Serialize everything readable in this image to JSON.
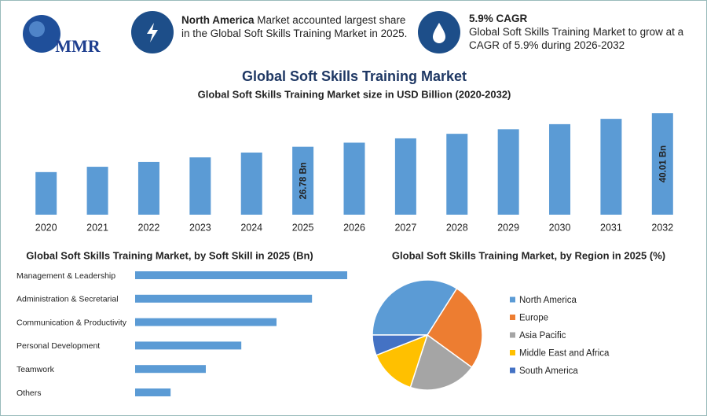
{
  "header": {
    "logo": "MMR",
    "stat1": {
      "bold": "North America",
      "text": "Market accounted largest share in the Global Soft Skills Training Market in 2025."
    },
    "stat2": {
      "bold": "5.9% CAGR",
      "text": "Global Soft Skills Training Market to grow at a CAGR of 5.9% during 2026-2032"
    }
  },
  "title": "Global Soft Skills Training Market",
  "chart_data": [
    {
      "type": "bar",
      "title": "Global Soft Skills Training Market size in USD Billion (2020-2032)",
      "categories": [
        "2020",
        "2021",
        "2022",
        "2023",
        "2024",
        "2025",
        "2026",
        "2027",
        "2028",
        "2029",
        "2030",
        "2031",
        "2032"
      ],
      "values": [
        16.8,
        18.9,
        20.8,
        22.6,
        24.5,
        26.78,
        28.4,
        30.1,
        31.9,
        33.7,
        35.7,
        37.8,
        40.01
      ],
      "value_labels": [
        null,
        null,
        null,
        null,
        null,
        "26.78 Bn",
        null,
        null,
        null,
        null,
        null,
        null,
        "40.01 Bn"
      ],
      "color": "#5b9bd5"
    },
    {
      "type": "bar",
      "horizontal": true,
      "title": "Global Soft Skills Training Market, by Soft Skill in 2025 (Bn)",
      "categories": [
        "Management & Leadership",
        "Administration & Secretarial",
        "Communication & Productivity",
        "Personal Development",
        "Teamwork",
        "Others"
      ],
      "values": [
        7.65,
        6.38,
        5.1,
        3.83,
        2.55,
        1.28
      ],
      "color": "#5b9bd5"
    },
    {
      "type": "pie",
      "title": "Global Soft Skills Training Market, by Region in 2025 (%)",
      "categories": [
        "North America",
        "Europe",
        "Asia Pacific",
        "Middle East and Africa",
        "South America"
      ],
      "values": [
        34,
        26,
        20,
        14,
        6
      ],
      "colors": [
        "#5b9bd5",
        "#ed7d31",
        "#a5a5a5",
        "#ffc000",
        "#4472c4"
      ]
    }
  ]
}
